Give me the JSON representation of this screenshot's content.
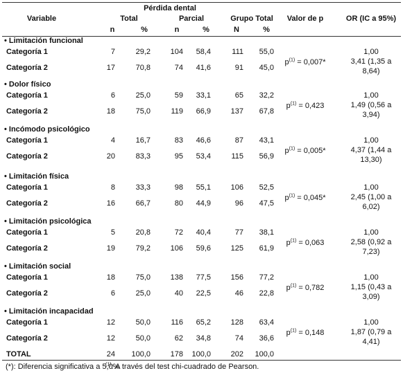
{
  "header": {
    "super": "Pérdida dental",
    "variable": "Variable",
    "total": "Total",
    "parcial": "Parcial",
    "grupo_total": "Grupo Total",
    "p": "Valor de p",
    "or": "OR (IC a 95%)",
    "sub": [
      "n",
      "%",
      "n",
      "%",
      "N",
      "%"
    ]
  },
  "groups": [
    {
      "label": "• Limitación funcional",
      "rows": [
        {
          "label": "Categoría 1",
          "cells": [
            "7",
            "29,2",
            "104",
            "58,4",
            "111",
            "55,0"
          ]
        },
        {
          "label": "Categoría 2",
          "cells": [
            "17",
            "70,8",
            "74",
            "41,6",
            "91",
            "45,0"
          ]
        }
      ],
      "p": {
        "p": "p",
        "sup": "(1)",
        "rest": " = 0,007*"
      },
      "or_ref": "1,00",
      "or": "3,41 (1,35 a 8,64)"
    },
    {
      "label": "• Dolor físico",
      "rows": [
        {
          "label": "Categoría 1",
          "cells": [
            "6",
            "25,0",
            "59",
            "33,1",
            "65",
            "32,2"
          ]
        },
        {
          "label": "Categoría 2",
          "cells": [
            "18",
            "75,0",
            "119",
            "66,9",
            "137",
            "67,8"
          ]
        }
      ],
      "p": {
        "p": "p",
        "sup": "(1)",
        "rest": " = 0,423"
      },
      "or_ref": "1,00",
      "or": "1,49 (0,56 a 3,94)"
    },
    {
      "label": "• Incómodo psicológico",
      "rows": [
        {
          "label": "Categoría 1",
          "cells": [
            "4",
            "16,7",
            "83",
            "46,6",
            "87",
            "43,1"
          ]
        },
        {
          "label": "Categoría 2",
          "cells": [
            "20",
            "83,3",
            "95",
            "53,4",
            "115",
            "56,9"
          ]
        }
      ],
      "p": {
        "p": "p",
        "sup": "(1)",
        "rest": " = 0,005*"
      },
      "or_ref": "1,00",
      "or": "4,37 (1,44 a 13,30)"
    },
    {
      "label": "• Limitación física",
      "rows": [
        {
          "label": "Categoría 1",
          "cells": [
            "8",
            "33,3",
            "98",
            "55,1",
            "106",
            "52,5"
          ]
        },
        {
          "label": "Categoría 2",
          "cells": [
            "16",
            "66,7",
            "80",
            "44,9",
            "96",
            "47,5"
          ]
        }
      ],
      "p": {
        "p": "p",
        "sup": "(1)",
        "rest": " = 0,045*"
      },
      "or_ref": "1,00",
      "or": "2,45 (1,00 a 6,02)"
    },
    {
      "label": "• Limitación psicológica",
      "rows": [
        {
          "label": "Categoría 1",
          "cells": [
            "5",
            "20,8",
            "72",
            "40,4",
            "77",
            "38,1"
          ]
        },
        {
          "label": "Categoría 2",
          "cells": [
            "19",
            "79,2",
            "106",
            "59,6",
            "125",
            "61,9"
          ]
        }
      ],
      "p": {
        "p": "p",
        "sup": "(1)",
        "rest": " = 0,063"
      },
      "or_ref": "1,00",
      "or": "2,58 (0,92 a 7,23)"
    },
    {
      "label": "• Limitación social",
      "rows": [
        {
          "label": "Categoría 1",
          "cells": [
            "18",
            "75,0",
            "138",
            "77,5",
            "156",
            "77,2"
          ]
        },
        {
          "label": "Categoría 2",
          "cells": [
            "6",
            "25,0",
            "40",
            "22,5",
            "46",
            "22,8"
          ]
        }
      ],
      "p": {
        "p": "p",
        "sup": "(1)",
        "rest": " = 0,782"
      },
      "or_ref": "1,00",
      "or": "1,15 (0,43 a 3,09)"
    },
    {
      "label": "• Limitación incapacidad",
      "rows": [
        {
          "label": "Categoría 1",
          "cells": [
            "12",
            "50,0",
            "116",
            "65,2",
            "128",
            "63,4"
          ]
        },
        {
          "label": "Categoría 2",
          "cells": [
            "12",
            "50,0",
            "62",
            "34,8",
            "74",
            "36,6"
          ]
        }
      ],
      "p": {
        "p": "p",
        "sup": "(1)",
        "rest": " = 0,148"
      },
      "or_ref": "1,00",
      "or": "1,87 (0,79 a 4,41)"
    }
  ],
  "total": {
    "label": "TOTAL",
    "cells": [
      "24",
      "100,0",
      "178",
      "100,0",
      "202",
      "100,0"
    ]
  },
  "footnotes": [
    {
      "text": "(*): Diferencia significativa a 5,0%"
    },
    {
      "sup": "(1)",
      "text": ": A través del test chi-cuadrado de Pearson."
    }
  ]
}
